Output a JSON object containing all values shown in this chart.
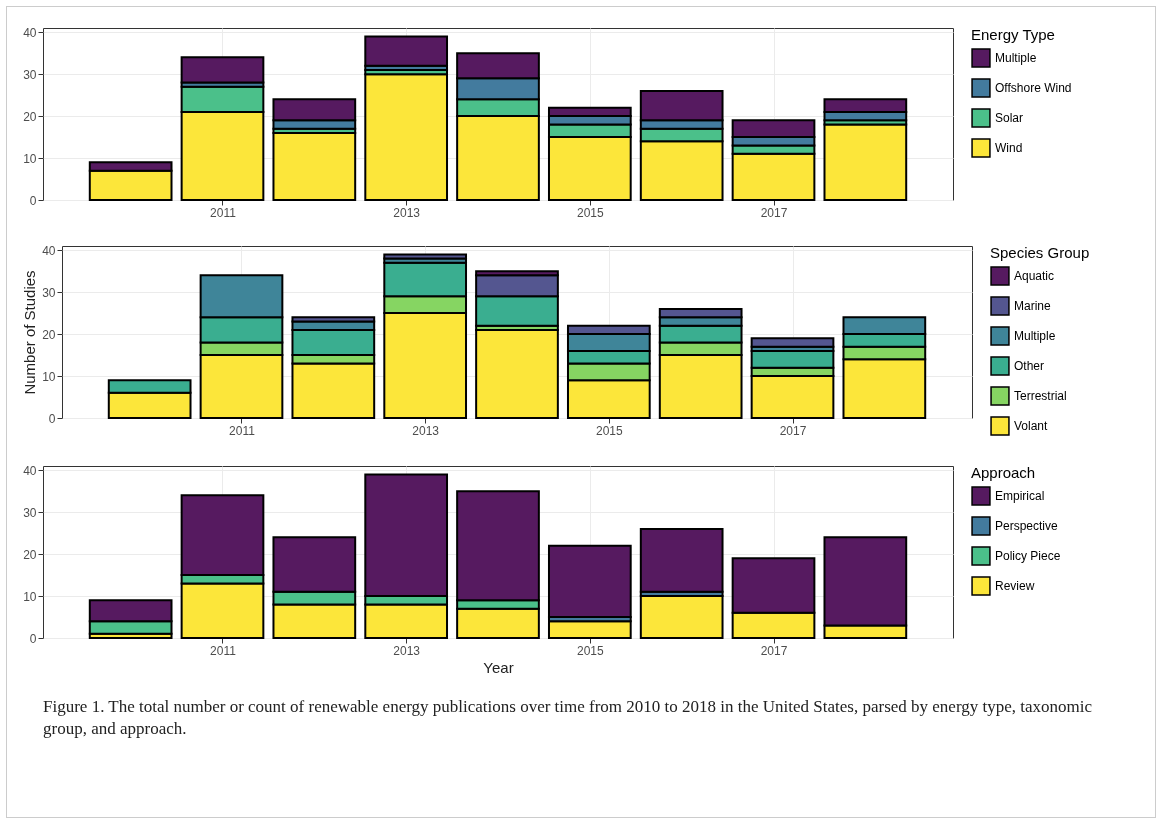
{
  "chart_data": [
    {
      "type": "bar",
      "stacked": true,
      "x": [
        2010,
        2011,
        2012,
        2013,
        2014,
        2015,
        2016,
        2017,
        2018
      ],
      "xlim": [
        2009.1,
        2018.9
      ],
      "xticks": [
        2011,
        2013,
        2015,
        2017
      ],
      "ylim": [
        0,
        41
      ],
      "yticks": [
        0,
        10,
        20,
        30,
        40
      ],
      "grid": true,
      "legend": "right",
      "legend_title": "Energy Type",
      "series": [
        {
          "name": "Wind",
          "color": "#fce63a",
          "values": [
            7,
            21,
            16,
            30,
            20,
            15,
            14,
            11,
            18
          ]
        },
        {
          "name": "Solar",
          "color": "#4bc08a",
          "values": [
            null,
            6,
            1,
            1,
            4,
            3,
            3,
            2,
            1
          ]
        },
        {
          "name": "Offshore Wind",
          "color": "#437b9e",
          "values": [
            null,
            1,
            2,
            1,
            5,
            2,
            2,
            2,
            2
          ]
        },
        {
          "name": "Multiple",
          "color": "#561a60",
          "values": [
            2,
            6,
            5,
            7,
            6,
            2,
            7,
            4,
            3
          ]
        }
      ]
    },
    {
      "type": "bar",
      "stacked": true,
      "x": [
        2010,
        2011,
        2012,
        2013,
        2014,
        2015,
        2016,
        2017,
        2018
      ],
      "xlim": [
        2009.1,
        2018.9
      ],
      "xticks": [
        2011,
        2013,
        2015,
        2017
      ],
      "ylim": [
        0,
        41
      ],
      "yticks": [
        0,
        10,
        20,
        30,
        40
      ],
      "grid": true,
      "legend": "right",
      "legend_title": "Species Group",
      "ylabel": "Number of Studies",
      "series": [
        {
          "name": "Volant",
          "color": "#fce63a",
          "values": [
            6,
            15,
            13,
            25,
            21,
            9,
            15,
            10,
            14
          ]
        },
        {
          "name": "Terrestrial",
          "color": "#86d562",
          "values": [
            null,
            3,
            2,
            4,
            1,
            4,
            3,
            2,
            3
          ]
        },
        {
          "name": "Other",
          "color": "#3aae90",
          "values": [
            3,
            6,
            6,
            8,
            7,
            3,
            4,
            4,
            3
          ]
        },
        {
          "name": "Multiple",
          "color": "#3f8599",
          "values": [
            null,
            10,
            2,
            1,
            null,
            4,
            2,
            1,
            4
          ]
        },
        {
          "name": "Marine",
          "color": "#545690",
          "values": [
            null,
            null,
            1,
            1,
            5,
            2,
            2,
            2,
            null
          ]
        },
        {
          "name": "Aquatic",
          "color": "#561a60",
          "values": [
            null,
            null,
            null,
            null,
            1,
            null,
            null,
            null,
            null
          ]
        }
      ]
    },
    {
      "type": "bar",
      "stacked": true,
      "x": [
        2010,
        2011,
        2012,
        2013,
        2014,
        2015,
        2016,
        2017,
        2018
      ],
      "xlim": [
        2009.1,
        2018.9
      ],
      "xticks": [
        2011,
        2013,
        2015,
        2017
      ],
      "ylim": [
        0,
        41
      ],
      "yticks": [
        0,
        10,
        20,
        30,
        40
      ],
      "grid": true,
      "legend": "right",
      "legend_title": "Approach",
      "xlabel": "Year",
      "annotations": [
        "Figure 1. The total number or count of renewable energy publications over time from 2010 to 2018 in the United States, parsed by energy type, taxonomic group, and approach."
      ],
      "series": [
        {
          "name": "Review",
          "color": "#fce63a",
          "values": [
            1,
            13,
            8,
            8,
            7,
            4,
            10,
            6,
            3
          ]
        },
        {
          "name": "Policy Piece",
          "color": "#4bc08a",
          "values": [
            3,
            2,
            3,
            2,
            2,
            null,
            null,
            null,
            null
          ]
        },
        {
          "name": "Perspective",
          "color": "#437b9e",
          "values": [
            null,
            null,
            null,
            null,
            null,
            1,
            1,
            null,
            null
          ]
        },
        {
          "name": "Empirical",
          "color": "#561a60",
          "values": [
            5,
            19,
            13,
            29,
            26,
            17,
            15,
            13,
            21
          ]
        }
      ]
    }
  ]
}
